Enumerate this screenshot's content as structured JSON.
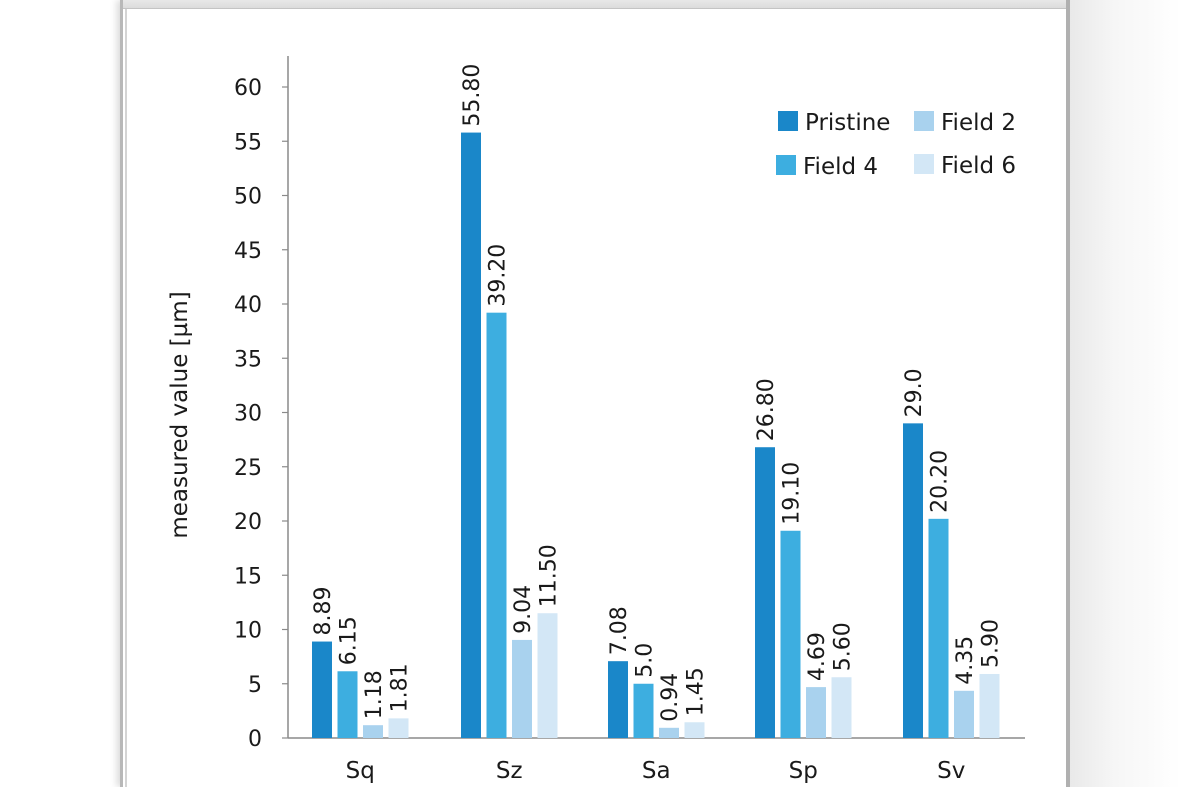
{
  "chart_data": {
    "type": "bar",
    "title": "",
    "xlabel": "",
    "ylabel": "measured value [µm]",
    "ylim": [
      0,
      62
    ],
    "yticks": [
      0,
      5,
      10,
      15,
      20,
      25,
      30,
      35,
      40,
      45,
      50,
      55,
      60
    ],
    "categories": [
      "Sq",
      "Sz",
      "Sa",
      "Sp",
      "Sv"
    ],
    "legend_position": "top-right",
    "grid": false,
    "series": [
      {
        "name": "Pristine",
        "color": "#1a87c9",
        "values": [
          8.89,
          55.8,
          7.08,
          26.8,
          29.0
        ],
        "labels": [
          "8.89",
          "55.80",
          "7.08",
          "26.80",
          "29.0"
        ]
      },
      {
        "name": "Field 4",
        "color": "#3daee0",
        "values": [
          6.15,
          39.2,
          5.0,
          19.1,
          20.2
        ],
        "labels": [
          "6.15",
          "39.20",
          "5.0",
          "19.10",
          "20.20"
        ]
      },
      {
        "name": "Field 2",
        "color": "#a9d2ee",
        "values": [
          1.18,
          9.04,
          0.94,
          4.69,
          4.35
        ],
        "labels": [
          "1.18",
          "9.04",
          "0.94",
          "4.69",
          "4.35"
        ]
      },
      {
        "name": "Field 6",
        "color": "#d3e7f6",
        "values": [
          1.81,
          11.5,
          1.45,
          5.6,
          5.9
        ],
        "labels": [
          "1.81",
          "11.50",
          "1.45",
          "5.60",
          "5.90"
        ]
      }
    ],
    "legend_order": [
      "Pristine",
      "Field 2",
      "Field 4",
      "Field 6"
    ]
  }
}
